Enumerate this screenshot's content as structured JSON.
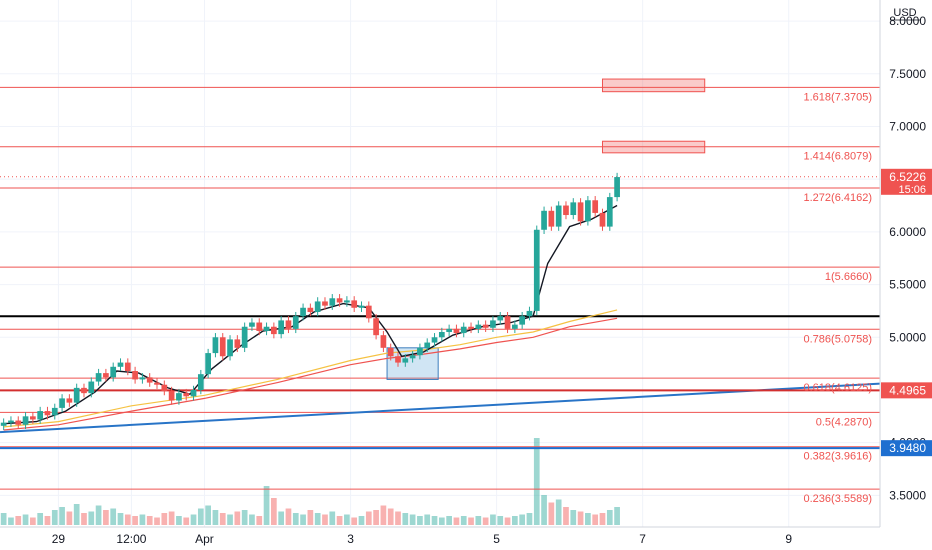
{
  "chart_data": {
    "type": "candlestick",
    "currency": "USD",
    "y_axis": {
      "range": [
        3.2,
        8.2
      ],
      "ticks": [
        "3.5000",
        "4.0000",
        "4.5000",
        "5.0000",
        "5.5000",
        "6.0000",
        "6.5000",
        "7.0000",
        "7.5000",
        "8.0000"
      ]
    },
    "x_axis": {
      "ticks": [
        {
          "label": "29",
          "t": 1.5
        },
        {
          "label": "12:00",
          "t": 2.5
        },
        {
          "label": "Apr",
          "t": 3.5
        },
        {
          "label": "3",
          "t": 5.5
        },
        {
          "label": "5",
          "t": 7.5
        },
        {
          "label": "7",
          "t": 9.5
        },
        {
          "label": "9",
          "t": 11.5
        }
      ],
      "range": [
        0.7,
        12.75
      ]
    },
    "fib_levels": [
      {
        "label": "1.618(7.3705)",
        "value": 7.3705
      },
      {
        "label": "1.414(6.8079)",
        "value": 6.8079
      },
      {
        "label": "1.272(6.4162)",
        "value": 6.4162
      },
      {
        "label": "1(5.6660)",
        "value": 5.666
      },
      {
        "label": "0.786(5.0758)",
        "value": 5.0758
      },
      {
        "label": "0.618(4.6125)",
        "value": 4.6125
      },
      {
        "label": "0.5(4.2870)",
        "value": 4.287
      },
      {
        "label": "0.382(3.9616)",
        "value": 3.9616
      },
      {
        "label": "0.236(3.5589)",
        "value": 3.5589
      }
    ],
    "price_labels": [
      {
        "value": "6.5226",
        "sub": "15:06",
        "price": 6.5226,
        "color": "#ef5350"
      },
      {
        "value": "4.4965",
        "price": 4.4965,
        "color": "#ef5350"
      },
      {
        "value": "3.9480",
        "price": 3.948,
        "color": "#1e6fd0"
      }
    ],
    "current_price": 6.5226,
    "horizontal_line": 5.2,
    "support_line_blue": 3.948,
    "support_line_red": 4.4965,
    "trendline": {
      "from": [
        0.7,
        4.1
      ],
      "to": [
        12.75,
        4.56
      ]
    },
    "accumulation_box": {
      "t": [
        6.0,
        6.7
      ],
      "price": [
        4.6,
        4.9
      ]
    },
    "target_boxes": [
      {
        "t": [
          8.95,
          10.35
        ],
        "price": [
          7.33,
          7.45
        ]
      },
      {
        "t": [
          8.95,
          10.35
        ],
        "price": [
          6.75,
          6.86
        ]
      }
    ],
    "candles": [
      [
        0.75,
        4.16,
        4.19
      ],
      [
        0.85,
        4.19,
        4.21
      ],
      [
        0.95,
        4.21,
        4.17
      ],
      [
        1.05,
        4.17,
        4.25
      ],
      [
        1.15,
        4.25,
        4.22
      ],
      [
        1.25,
        4.22,
        4.3
      ],
      [
        1.35,
        4.3,
        4.26
      ],
      [
        1.45,
        4.26,
        4.33
      ],
      [
        1.55,
        4.33,
        4.42
      ],
      [
        1.65,
        4.42,
        4.38
      ],
      [
        1.75,
        4.38,
        4.52
      ],
      [
        1.85,
        4.52,
        4.47
      ],
      [
        1.95,
        4.47,
        4.58
      ],
      [
        2.05,
        4.58,
        4.66
      ],
      [
        2.15,
        4.66,
        4.62
      ],
      [
        2.25,
        4.62,
        4.72
      ],
      [
        2.35,
        4.72,
        4.76
      ],
      [
        2.45,
        4.76,
        4.68
      ],
      [
        2.55,
        4.68,
        4.6
      ],
      [
        2.65,
        4.6,
        4.62
      ],
      [
        2.75,
        4.62,
        4.57
      ],
      [
        2.85,
        4.57,
        4.55
      ],
      [
        2.95,
        4.55,
        4.49
      ],
      [
        3.05,
        4.49,
        4.4
      ],
      [
        3.15,
        4.4,
        4.47
      ],
      [
        3.25,
        4.47,
        4.44
      ],
      [
        3.35,
        4.44,
        4.5
      ],
      [
        3.45,
        4.5,
        4.65
      ],
      [
        3.55,
        4.65,
        4.85
      ],
      [
        3.65,
        4.85,
        5.0
      ],
      [
        3.75,
        5.0,
        4.82
      ],
      [
        3.85,
        4.82,
        4.98
      ],
      [
        3.95,
        4.98,
        4.9
      ],
      [
        4.05,
        4.9,
        5.1
      ],
      [
        4.15,
        5.1,
        5.14
      ],
      [
        4.25,
        5.14,
        5.06
      ],
      [
        4.35,
        5.06,
        5.1
      ],
      [
        4.45,
        5.1,
        5.03
      ],
      [
        4.55,
        5.03,
        5.16
      ],
      [
        4.65,
        5.16,
        5.08
      ],
      [
        4.75,
        5.08,
        5.2
      ],
      [
        4.85,
        5.2,
        5.28
      ],
      [
        4.95,
        5.28,
        5.24
      ],
      [
        5.05,
        5.24,
        5.34
      ],
      [
        5.15,
        5.34,
        5.3
      ],
      [
        5.25,
        5.3,
        5.37
      ],
      [
        5.35,
        5.37,
        5.33
      ],
      [
        5.45,
        5.33,
        5.35
      ],
      [
        5.55,
        5.35,
        5.28
      ],
      [
        5.65,
        5.28,
        5.3
      ],
      [
        5.75,
        5.3,
        5.18
      ],
      [
        5.85,
        5.18,
        5.02
      ],
      [
        5.95,
        5.02,
        4.9
      ],
      [
        6.05,
        4.9,
        4.82
      ],
      [
        6.15,
        4.82,
        4.76
      ],
      [
        6.25,
        4.76,
        4.8
      ],
      [
        6.35,
        4.8,
        4.83
      ],
      [
        6.45,
        4.83,
        4.9
      ],
      [
        6.55,
        4.9,
        4.95
      ],
      [
        6.65,
        4.95,
        5.0
      ],
      [
        6.75,
        5.0,
        5.05
      ],
      [
        6.85,
        5.05,
        5.08
      ],
      [
        6.95,
        5.08,
        5.04
      ],
      [
        7.05,
        5.04,
        5.1
      ],
      [
        7.15,
        5.1,
        5.08
      ],
      [
        7.25,
        5.08,
        5.12
      ],
      [
        7.35,
        5.12,
        5.09
      ],
      [
        7.45,
        5.09,
        5.16
      ],
      [
        7.55,
        5.16,
        5.2
      ],
      [
        7.65,
        5.2,
        5.08
      ],
      [
        7.75,
        5.08,
        5.12
      ],
      [
        7.85,
        5.12,
        5.2
      ],
      [
        7.95,
        5.2,
        5.25
      ],
      [
        8.05,
        5.25,
        6.02
      ],
      [
        8.15,
        6.02,
        6.2
      ],
      [
        8.25,
        6.2,
        6.05
      ],
      [
        8.35,
        6.05,
        6.25
      ],
      [
        8.45,
        6.25,
        6.16
      ],
      [
        8.55,
        6.16,
        6.28
      ],
      [
        8.65,
        6.28,
        6.1
      ],
      [
        8.75,
        6.1,
        6.3
      ],
      [
        8.85,
        6.3,
        6.18
      ],
      [
        8.95,
        6.18,
        6.05
      ],
      [
        9.05,
        6.05,
        6.33
      ],
      [
        9.15,
        6.33,
        6.52
      ]
    ],
    "volumes": [
      [
        0.75,
        0.8
      ],
      [
        0.85,
        0.5
      ],
      [
        0.95,
        0.6
      ],
      [
        1.05,
        0.7
      ],
      [
        1.15,
        0.5
      ],
      [
        1.25,
        0.8
      ],
      [
        1.35,
        0.6
      ],
      [
        1.45,
        1.0
      ],
      [
        1.55,
        1.2
      ],
      [
        1.65,
        0.9
      ],
      [
        1.75,
        1.4
      ],
      [
        1.85,
        0.8
      ],
      [
        1.95,
        0.9
      ],
      [
        2.05,
        1.3
      ],
      [
        2.15,
        1.0
      ],
      [
        2.25,
        1.1
      ],
      [
        2.35,
        0.8
      ],
      [
        2.45,
        0.7
      ],
      [
        2.55,
        0.6
      ],
      [
        2.65,
        0.7
      ],
      [
        2.75,
        0.6
      ],
      [
        2.85,
        0.5
      ],
      [
        2.95,
        0.8
      ],
      [
        3.05,
        0.9
      ],
      [
        3.15,
        0.6
      ],
      [
        3.25,
        0.5
      ],
      [
        3.35,
        0.7
      ],
      [
        3.45,
        1.1
      ],
      [
        3.55,
        1.3
      ],
      [
        3.65,
        1.0
      ],
      [
        3.75,
        0.8
      ],
      [
        3.85,
        0.7
      ],
      [
        3.95,
        0.9
      ],
      [
        4.05,
        1.0
      ],
      [
        4.15,
        0.7
      ],
      [
        4.25,
        0.6
      ],
      [
        4.35,
        2.6
      ],
      [
        4.45,
        1.8
      ],
      [
        4.55,
        0.9
      ],
      [
        4.65,
        1.1
      ],
      [
        4.75,
        0.8
      ],
      [
        4.85,
        0.7
      ],
      [
        4.95,
        1.0
      ],
      [
        5.05,
        0.8
      ],
      [
        5.15,
        0.7
      ],
      [
        5.25,
        0.9
      ],
      [
        5.35,
        0.6
      ],
      [
        5.45,
        0.7
      ],
      [
        5.55,
        0.5
      ],
      [
        5.65,
        0.6
      ],
      [
        5.75,
        0.9
      ],
      [
        5.85,
        1.0
      ],
      [
        5.95,
        1.3
      ],
      [
        6.05,
        1.1
      ],
      [
        6.15,
        0.9
      ],
      [
        6.25,
        0.8
      ],
      [
        6.35,
        0.7
      ],
      [
        6.45,
        0.6
      ],
      [
        6.55,
        0.7
      ],
      [
        6.65,
        0.6
      ],
      [
        6.75,
        0.5
      ],
      [
        6.85,
        0.6
      ],
      [
        6.95,
        0.5
      ],
      [
        7.05,
        0.6
      ],
      [
        7.15,
        0.5
      ],
      [
        7.25,
        0.6
      ],
      [
        7.35,
        0.5
      ],
      [
        7.45,
        0.7
      ],
      [
        7.55,
        0.6
      ],
      [
        7.65,
        0.5
      ],
      [
        7.75,
        0.6
      ],
      [
        7.85,
        0.7
      ],
      [
        7.95,
        0.8
      ],
      [
        8.05,
        5.8
      ],
      [
        8.15,
        2.0
      ],
      [
        8.25,
        1.5
      ],
      [
        8.35,
        1.7
      ],
      [
        8.45,
        1.2
      ],
      [
        8.55,
        1.0
      ],
      [
        8.65,
        0.9
      ],
      [
        8.75,
        0.8
      ],
      [
        8.85,
        0.7
      ],
      [
        8.95,
        0.8
      ],
      [
        9.05,
        1.0
      ],
      [
        9.15,
        1.2
      ]
    ],
    "ema_black": [
      [
        0.75,
        4.18
      ],
      [
        1.2,
        4.2
      ],
      [
        1.6,
        4.3
      ],
      [
        2.0,
        4.48
      ],
      [
        2.3,
        4.68
      ],
      [
        2.6,
        4.66
      ],
      [
        3.0,
        4.52
      ],
      [
        3.3,
        4.46
      ],
      [
        3.6,
        4.7
      ],
      [
        4.0,
        4.92
      ],
      [
        4.3,
        5.06
      ],
      [
        4.7,
        5.1
      ],
      [
        5.0,
        5.24
      ],
      [
        5.4,
        5.32
      ],
      [
        5.75,
        5.28
      ],
      [
        6.0,
        5.05
      ],
      [
        6.2,
        4.82
      ],
      [
        6.5,
        4.86
      ],
      [
        6.9,
        5.02
      ],
      [
        7.3,
        5.1
      ],
      [
        7.7,
        5.14
      ],
      [
        8.0,
        5.2
      ],
      [
        8.2,
        5.7
      ],
      [
        8.5,
        6.05
      ],
      [
        8.8,
        6.12
      ],
      [
        9.15,
        6.25
      ]
    ],
    "ma_orange": [
      [
        0.75,
        4.15
      ],
      [
        1.5,
        4.2
      ],
      [
        2.5,
        4.35
      ],
      [
        3.5,
        4.45
      ],
      [
        4.5,
        4.6
      ],
      [
        5.5,
        4.78
      ],
      [
        6.0,
        4.85
      ],
      [
        6.5,
        4.88
      ],
      [
        7.0,
        4.93
      ],
      [
        7.5,
        5.0
      ],
      [
        8.0,
        5.05
      ],
      [
        8.5,
        5.15
      ],
      [
        9.15,
        5.26
      ]
    ],
    "ma_red": [
      [
        0.75,
        4.12
      ],
      [
        1.5,
        4.17
      ],
      [
        2.5,
        4.3
      ],
      [
        3.5,
        4.42
      ],
      [
        4.5,
        4.57
      ],
      [
        5.5,
        4.74
      ],
      [
        6.0,
        4.8
      ],
      [
        6.5,
        4.84
      ],
      [
        7.0,
        4.89
      ],
      [
        7.5,
        4.95
      ],
      [
        8.0,
        5.0
      ],
      [
        8.5,
        5.1
      ],
      [
        9.15,
        5.18
      ]
    ]
  }
}
